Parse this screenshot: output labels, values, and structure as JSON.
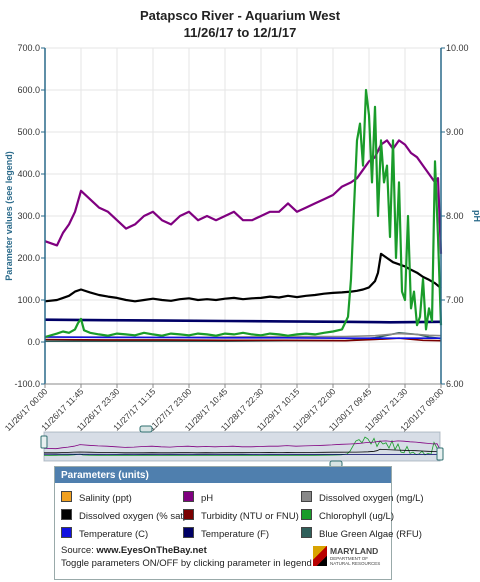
{
  "header": {
    "title": "Patapsco River - Aquarium West",
    "subtitle": "11/26/17 to 12/1/17"
  },
  "colors": {
    "ph": "#800080",
    "dissolved_oxygen_pct": "#000000",
    "chlorophyll": "#1a9c2a",
    "temperature_f": "#000066",
    "turbidity": "#7a0000",
    "temperature_c": "#1010e0",
    "dissolved_oxygen_mg": "#888888",
    "blue_green_algae": "#2f5f5a",
    "legend_header": "#4f7fae",
    "axis": "#2a6a8a"
  },
  "chart_data": {
    "type": "line",
    "ylabel": "Parameter values (see legend)",
    "y2label": "pH",
    "ylim": [
      -100,
      700
    ],
    "yticks": [
      "700.0",
      "600.0",
      "500.0",
      "400.0",
      "300.0",
      "200.0",
      "100.0",
      "0.0",
      "-100.0"
    ],
    "y2lim": [
      6,
      10
    ],
    "y2ticks": [
      "10.00",
      "9.00",
      "8.00",
      "7.00",
      "6.00"
    ],
    "xlim_hours": [
      0,
      132
    ],
    "xticks": [
      "11/26/17 00:00",
      "11/26/17 11:45",
      "11/26/17 23:30",
      "11/27/17 11:15",
      "11/27/17 23:00",
      "11/28/17 10:45",
      "11/28/17 22:30",
      "11/29/17 10:15",
      "11/29/17 22:00",
      "11/30/17 09:45",
      "11/30/17 21:30",
      "12/01/17 09:00"
    ],
    "grid": true,
    "series": [
      {
        "name": "pH",
        "axis": "right",
        "x": [
          0,
          4,
          6,
          8,
          10,
          12,
          15,
          18,
          21,
          24,
          27,
          30,
          33,
          36,
          39,
          42,
          45,
          48,
          51,
          54,
          57,
          60,
          63,
          66,
          69,
          72,
          75,
          78,
          81,
          84,
          87,
          90,
          93,
          96,
          99,
          102,
          104,
          106,
          108,
          110,
          112,
          114,
          116,
          118,
          120,
          122,
          124,
          126,
          128,
          130,
          131,
          132
        ],
        "y": [
          7.7,
          7.65,
          7.8,
          7.9,
          8.05,
          8.3,
          8.2,
          8.1,
          8.05,
          7.95,
          7.85,
          7.9,
          8.0,
          8.05,
          7.95,
          7.9,
          8.0,
          8.05,
          7.95,
          8.0,
          7.95,
          8.0,
          8.05,
          7.95,
          7.95,
          8.0,
          8.05,
          8.05,
          8.15,
          8.05,
          8.1,
          8.15,
          8.2,
          8.25,
          8.35,
          8.4,
          8.45,
          8.55,
          8.65,
          8.7,
          8.85,
          8.9,
          8.8,
          8.9,
          8.85,
          8.75,
          8.7,
          8.6,
          8.5,
          8.4,
          8.45,
          7.55
        ]
      },
      {
        "name": "Dissolved oxygen (% sat)",
        "axis": "left",
        "x": [
          0,
          4,
          6,
          8,
          10,
          12,
          15,
          18,
          21,
          24,
          27,
          30,
          33,
          36,
          39,
          42,
          45,
          48,
          51,
          54,
          57,
          60,
          63,
          66,
          69,
          72,
          75,
          78,
          81,
          84,
          87,
          90,
          93,
          96,
          99,
          102,
          104,
          106,
          108,
          110,
          111,
          112,
          114,
          116,
          118,
          120,
          122,
          124,
          126,
          128,
          130,
          132
        ],
        "y": [
          97,
          100,
          105,
          110,
          120,
          125,
          118,
          112,
          108,
          105,
          100,
          97,
          100,
          103,
          100,
          98,
          102,
          104,
          100,
          102,
          100,
          103,
          105,
          102,
          104,
          105,
          108,
          106,
          110,
          107,
          110,
          112,
          115,
          117,
          118,
          120,
          122,
          125,
          130,
          145,
          165,
          210,
          200,
          190,
          185,
          180,
          172,
          165,
          155,
          148,
          140,
          128
        ]
      },
      {
        "name": "Chlorophyll (ug/L)",
        "axis": "left",
        "x": [
          0,
          4,
          6,
          8,
          10,
          11,
          12,
          13,
          15,
          18,
          21,
          24,
          27,
          30,
          33,
          36,
          39,
          42,
          45,
          48,
          51,
          54,
          57,
          60,
          63,
          66,
          69,
          72,
          75,
          78,
          81,
          84,
          87,
          90,
          93,
          96,
          99,
          101,
          102,
          103,
          104,
          105,
          106,
          107,
          108,
          109,
          110,
          111,
          112,
          113,
          114,
          115,
          116,
          117,
          118,
          119,
          120,
          121,
          122,
          123,
          124,
          125,
          126,
          127,
          128,
          129,
          130,
          131,
          132
        ],
        "y": [
          12,
          20,
          25,
          22,
          30,
          45,
          55,
          28,
          22,
          18,
          15,
          20,
          18,
          16,
          22,
          18,
          15,
          20,
          18,
          16,
          20,
          18,
          15,
          20,
          18,
          22,
          18,
          16,
          20,
          18,
          15,
          18,
          20,
          18,
          22,
          25,
          30,
          60,
          150,
          320,
          480,
          520,
          420,
          600,
          540,
          380,
          560,
          300,
          480,
          380,
          420,
          250,
          480,
          200,
          380,
          120,
          100,
          300,
          80,
          120,
          40,
          60,
          150,
          30,
          80,
          50,
          430,
          250,
          40
        ]
      },
      {
        "name": "Temperature (F)",
        "axis": "left",
        "x": [
          0,
          20,
          40,
          60,
          80,
          100,
          115,
          132
        ],
        "y": [
          53,
          52,
          51,
          50,
          49,
          48,
          47,
          48
        ]
      },
      {
        "name": "Turbidity (NTU or FNU)",
        "axis": "left",
        "x": [
          0,
          20,
          40,
          60,
          80,
          100,
          110,
          118,
          126,
          132
        ],
        "y": [
          6,
          5,
          5,
          4,
          4,
          3,
          6,
          9,
          4,
          3
        ]
      },
      {
        "name": "Temperature (C)",
        "axis": "left",
        "x": [
          0,
          20,
          40,
          60,
          80,
          100,
          115,
          132
        ],
        "y": [
          12,
          11,
          11,
          10,
          10,
          9,
          9,
          9
        ]
      },
      {
        "name": "Dissolved oxygen (mg/L)",
        "axis": "left",
        "x": [
          0,
          20,
          40,
          60,
          80,
          100,
          110,
          118,
          124,
          128,
          132
        ],
        "y": [
          12,
          12,
          11,
          12,
          13,
          13,
          15,
          20,
          18,
          16,
          15
        ]
      },
      {
        "name": "Blue Green Algae (RFU)",
        "axis": "left",
        "x": [
          0,
          20,
          40,
          60,
          80,
          100,
          110,
          118,
          124,
          128,
          132
        ],
        "y": [
          2,
          2,
          2,
          2,
          3,
          3,
          10,
          22,
          18,
          12,
          8
        ]
      }
    ]
  },
  "legend": {
    "title": "Parameters (units)",
    "items": [
      {
        "label": "Salinity (ppt)",
        "color": "#f0a020"
      },
      {
        "label": "pH",
        "color": "#800080"
      },
      {
        "label": "Dissolved oxygen (mg/L)",
        "color": "#888888"
      },
      {
        "label": "Dissolved oxygen (% sat)",
        "color": "#000000"
      },
      {
        "label": "Turbidity (NTU or FNU)",
        "color": "#7a0000"
      },
      {
        "label": "Chlorophyll (ug/L)",
        "color": "#1a9c2a"
      },
      {
        "label": "Temperature (C)",
        "color": "#1010e0"
      },
      {
        "label": "Temperature (F)",
        "color": "#000066"
      },
      {
        "label": "Blue Green Algae (RFU)",
        "color": "#2f5f5a"
      }
    ],
    "source_label": "Source:",
    "source_url": "www.EyesOnTheBay.net",
    "toggle_note": "Toggle parameters ON/OFF by clicking parameter in legend",
    "logo_text": "MARYLAND",
    "logo_sub": "DEPARTMENT OF NATURAL RESOURCES"
  }
}
